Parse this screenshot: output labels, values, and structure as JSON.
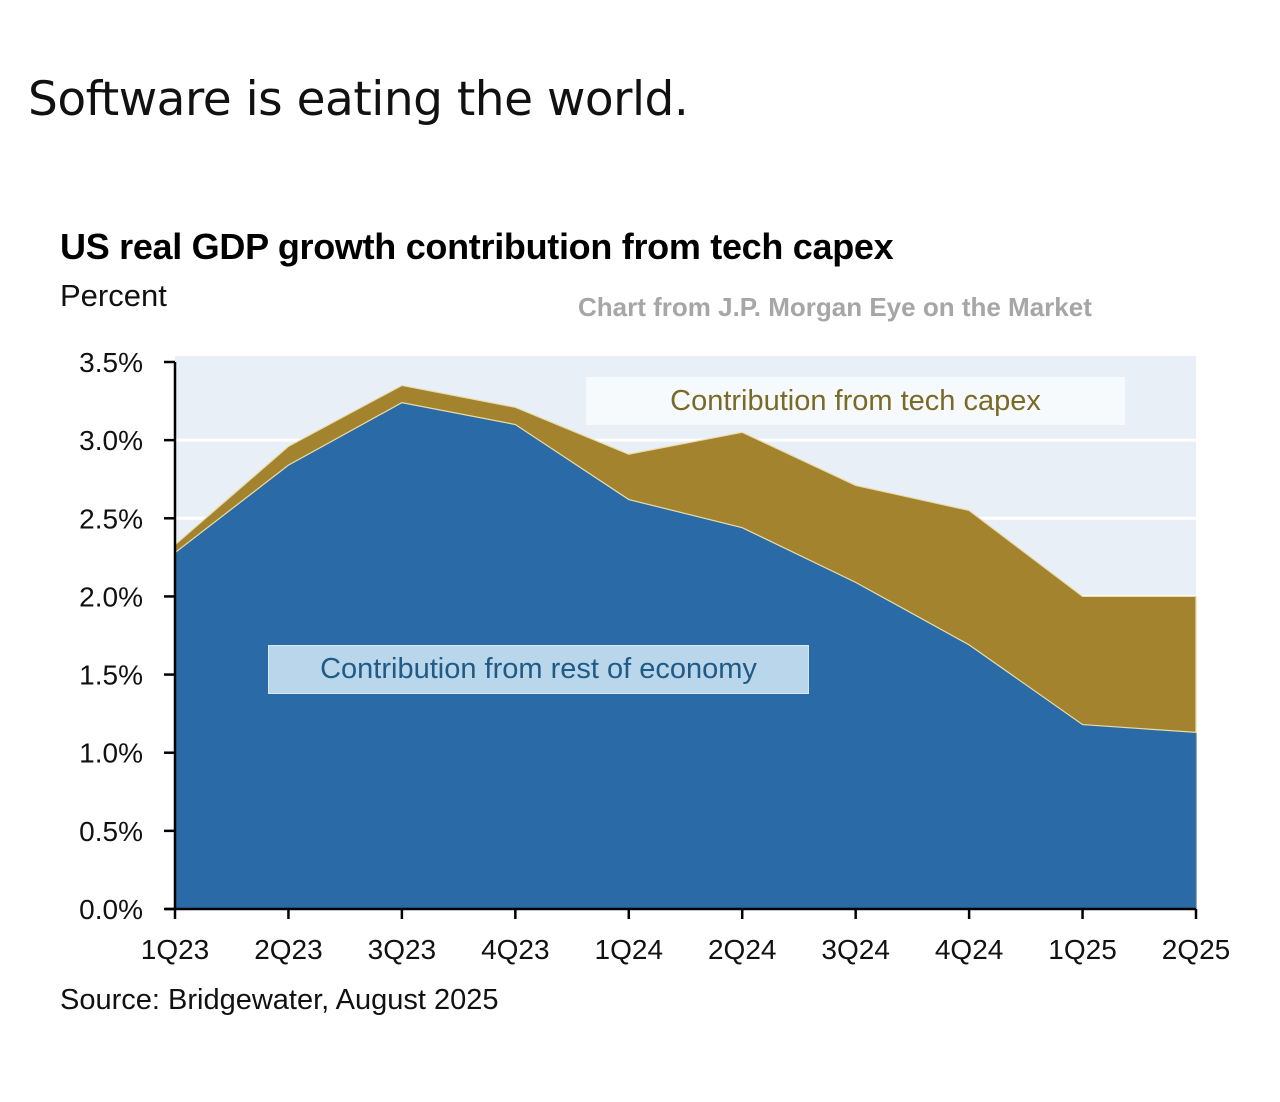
{
  "post": {
    "text": "Software is eating the world."
  },
  "chart_data": {
    "type": "area",
    "stacked": true,
    "title": "US real GDP growth contribution from tech capex",
    "subtitle": "Percent",
    "credit": "Chart from J.P. Morgan Eye on the Market",
    "source": "Source: Bridgewater, August 2025",
    "xlabel": "",
    "ylabel": "Percent",
    "ylim": [
      0,
      3.5
    ],
    "yticks": [
      0,
      0.5,
      1.0,
      1.5,
      2.0,
      2.5,
      3.0,
      3.5
    ],
    "ytick_labels": [
      "0.0%",
      "0.5%",
      "1.0%",
      "1.5%",
      "2.0%",
      "2.5%",
      "3.0%",
      "3.5%"
    ],
    "grid": true,
    "categories": [
      "1Q23",
      "2Q23",
      "3Q23",
      "4Q23",
      "1Q24",
      "2Q24",
      "3Q24",
      "4Q24",
      "1Q25",
      "2Q25"
    ],
    "series": [
      {
        "name": "Contribution from rest of economy",
        "color": "#2a6aa7",
        "values": [
          2.28,
          2.84,
          3.24,
          3.1,
          2.62,
          2.44,
          2.09,
          1.69,
          1.18,
          1.13
        ]
      },
      {
        "name": "Contribution from tech capex",
        "color": "#a3832e",
        "values": [
          0.05,
          0.12,
          0.11,
          0.11,
          0.29,
          0.61,
          0.62,
          0.86,
          0.82,
          0.87
        ]
      }
    ],
    "totals": [
      2.33,
      2.96,
      3.35,
      3.21,
      2.91,
      3.05,
      2.71,
      2.55,
      2.0,
      2.0
    ],
    "annotations": [
      {
        "text": "Contribution from tech capex",
        "series": "Contribution from tech capex"
      },
      {
        "text": "Contribution from rest of economy",
        "series": "Contribution from rest of economy"
      }
    ],
    "plot_background": "#e8eff6",
    "gridline_color": "#ffffff"
  }
}
